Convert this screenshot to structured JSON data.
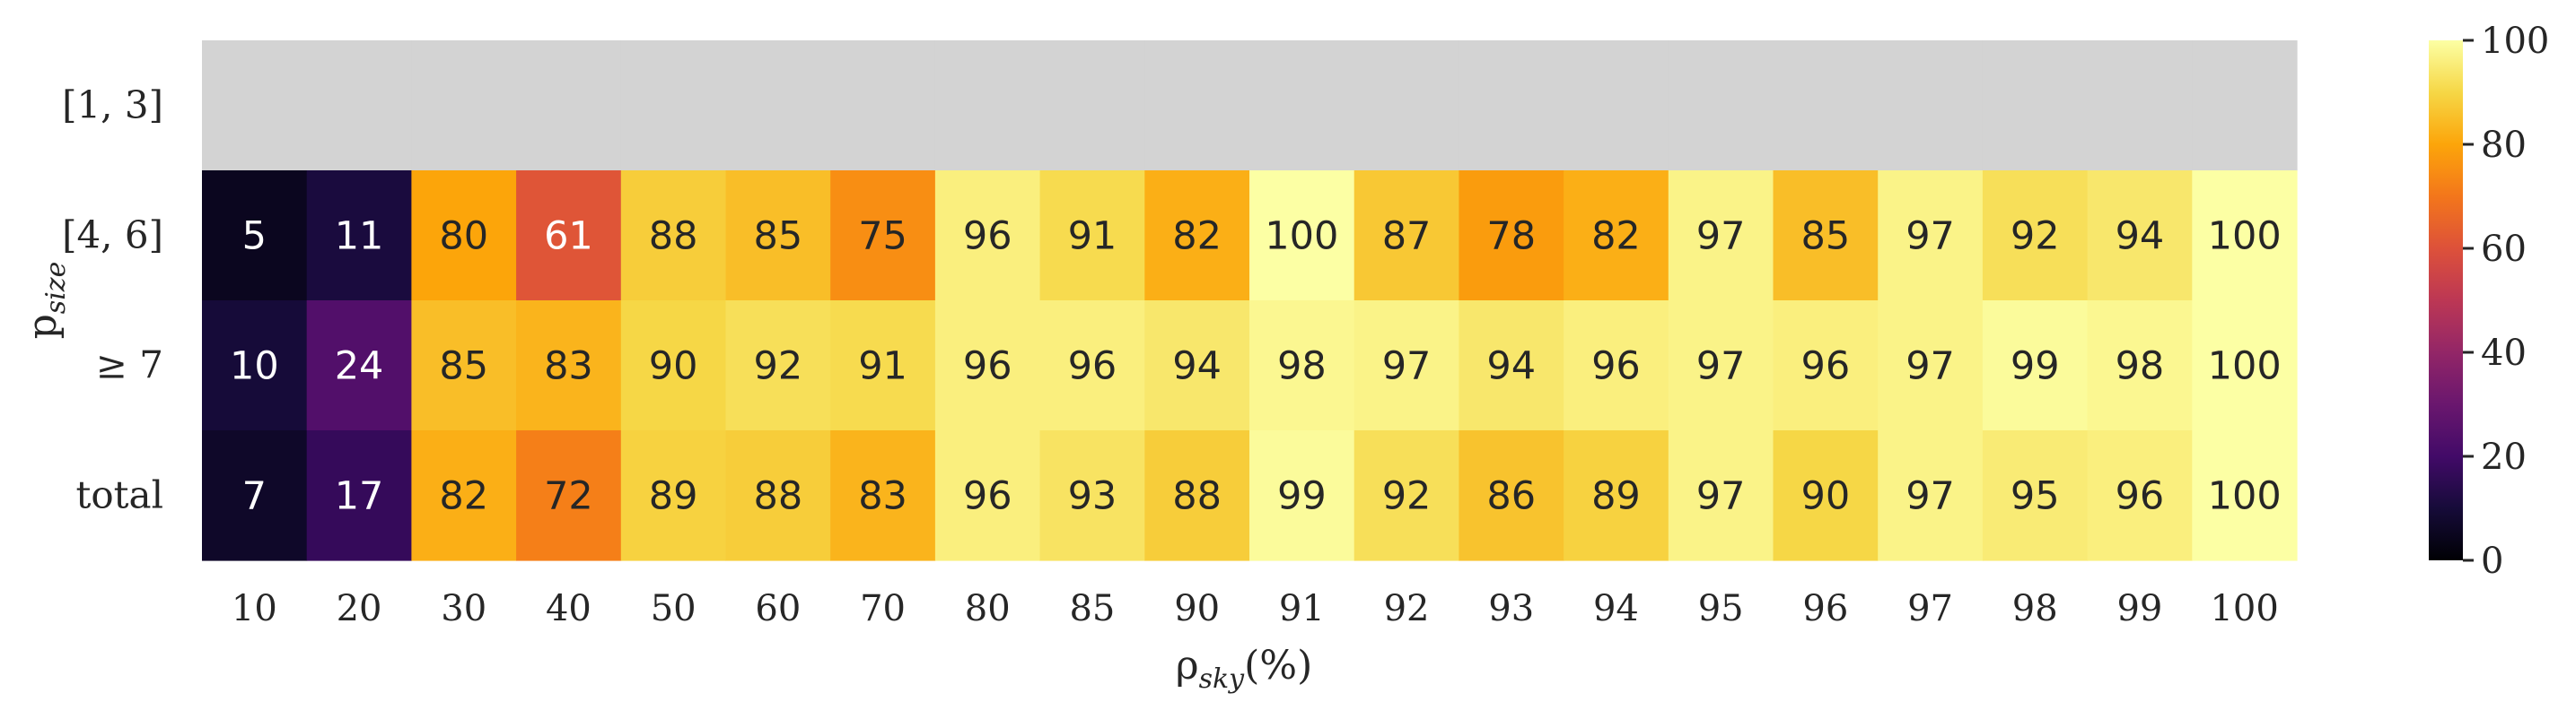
{
  "chart_data": {
    "type": "heatmap",
    "x": [
      "10",
      "20",
      "30",
      "40",
      "50",
      "60",
      "70",
      "80",
      "85",
      "90",
      "91",
      "92",
      "93",
      "94",
      "95",
      "96",
      "97",
      "98",
      "99",
      "100"
    ],
    "y": [
      "[1, 3]",
      "[4, 6]",
      "≥ 7",
      "total"
    ],
    "values": [
      [
        null,
        null,
        null,
        null,
        null,
        null,
        null,
        null,
        null,
        null,
        null,
        null,
        null,
        null,
        null,
        null,
        null,
        null,
        null,
        null
      ],
      [
        5,
        11,
        80,
        61,
        88,
        85,
        75,
        96,
        91,
        82,
        100,
        87,
        78,
        82,
        97,
        85,
        97,
        92,
        94,
        100
      ],
      [
        10,
        24,
        85,
        83,
        90,
        92,
        91,
        96,
        96,
        94,
        98,
        97,
        94,
        96,
        97,
        96,
        97,
        99,
        98,
        100
      ],
      [
        7,
        17,
        82,
        72,
        89,
        88,
        83,
        96,
        93,
        88,
        99,
        92,
        86,
        89,
        97,
        90,
        97,
        95,
        96,
        100
      ]
    ],
    "xlabel": {
      "main": "ρ",
      "sub": "sky",
      "unit": "(%)"
    },
    "ylabel": {
      "main": "p",
      "sub": "size"
    },
    "colorbar": {
      "range": [
        0,
        100
      ],
      "ticks": [
        "0",
        "20",
        "40",
        "60",
        "80",
        "100"
      ],
      "colormap": "inferno"
    },
    "missing_color": "#d3d3d3",
    "grid": false,
    "legend": "colorbar-right"
  }
}
